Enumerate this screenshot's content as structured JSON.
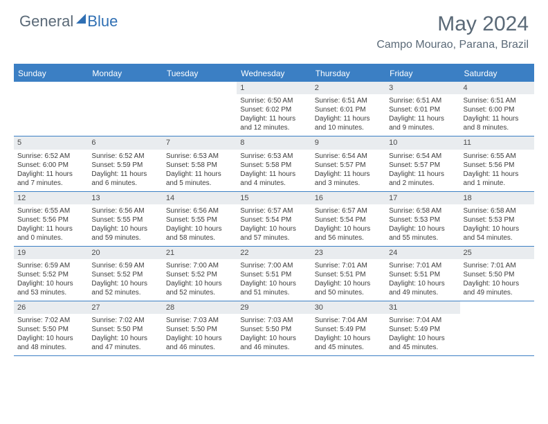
{
  "logo": {
    "part1": "General",
    "part2": "Blue"
  },
  "title": "May 2024",
  "location": "Campo Mourao, Parana, Brazil",
  "colors": {
    "header_bg": "#3b7fc4",
    "header_text": "#ffffff",
    "daynum_bg": "#e9ecef",
    "text": "#3c3c3c",
    "title_color": "#5a6977",
    "accent": "#2f6fb3"
  },
  "day_headers": [
    "Sunday",
    "Monday",
    "Tuesday",
    "Wednesday",
    "Thursday",
    "Friday",
    "Saturday"
  ],
  "weeks": [
    [
      {
        "n": "",
        "sr": "",
        "ss": "",
        "dl": ""
      },
      {
        "n": "",
        "sr": "",
        "ss": "",
        "dl": ""
      },
      {
        "n": "",
        "sr": "",
        "ss": "",
        "dl": ""
      },
      {
        "n": "1",
        "sr": "Sunrise: 6:50 AM",
        "ss": "Sunset: 6:02 PM",
        "dl": "Daylight: 11 hours and 12 minutes."
      },
      {
        "n": "2",
        "sr": "Sunrise: 6:51 AM",
        "ss": "Sunset: 6:01 PM",
        "dl": "Daylight: 11 hours and 10 minutes."
      },
      {
        "n": "3",
        "sr": "Sunrise: 6:51 AM",
        "ss": "Sunset: 6:01 PM",
        "dl": "Daylight: 11 hours and 9 minutes."
      },
      {
        "n": "4",
        "sr": "Sunrise: 6:51 AM",
        "ss": "Sunset: 6:00 PM",
        "dl": "Daylight: 11 hours and 8 minutes."
      }
    ],
    [
      {
        "n": "5",
        "sr": "Sunrise: 6:52 AM",
        "ss": "Sunset: 6:00 PM",
        "dl": "Daylight: 11 hours and 7 minutes."
      },
      {
        "n": "6",
        "sr": "Sunrise: 6:52 AM",
        "ss": "Sunset: 5:59 PM",
        "dl": "Daylight: 11 hours and 6 minutes."
      },
      {
        "n": "7",
        "sr": "Sunrise: 6:53 AM",
        "ss": "Sunset: 5:58 PM",
        "dl": "Daylight: 11 hours and 5 minutes."
      },
      {
        "n": "8",
        "sr": "Sunrise: 6:53 AM",
        "ss": "Sunset: 5:58 PM",
        "dl": "Daylight: 11 hours and 4 minutes."
      },
      {
        "n": "9",
        "sr": "Sunrise: 6:54 AM",
        "ss": "Sunset: 5:57 PM",
        "dl": "Daylight: 11 hours and 3 minutes."
      },
      {
        "n": "10",
        "sr": "Sunrise: 6:54 AM",
        "ss": "Sunset: 5:57 PM",
        "dl": "Daylight: 11 hours and 2 minutes."
      },
      {
        "n": "11",
        "sr": "Sunrise: 6:55 AM",
        "ss": "Sunset: 5:56 PM",
        "dl": "Daylight: 11 hours and 1 minute."
      }
    ],
    [
      {
        "n": "12",
        "sr": "Sunrise: 6:55 AM",
        "ss": "Sunset: 5:56 PM",
        "dl": "Daylight: 11 hours and 0 minutes."
      },
      {
        "n": "13",
        "sr": "Sunrise: 6:56 AM",
        "ss": "Sunset: 5:55 PM",
        "dl": "Daylight: 10 hours and 59 minutes."
      },
      {
        "n": "14",
        "sr": "Sunrise: 6:56 AM",
        "ss": "Sunset: 5:55 PM",
        "dl": "Daylight: 10 hours and 58 minutes."
      },
      {
        "n": "15",
        "sr": "Sunrise: 6:57 AM",
        "ss": "Sunset: 5:54 PM",
        "dl": "Daylight: 10 hours and 57 minutes."
      },
      {
        "n": "16",
        "sr": "Sunrise: 6:57 AM",
        "ss": "Sunset: 5:54 PM",
        "dl": "Daylight: 10 hours and 56 minutes."
      },
      {
        "n": "17",
        "sr": "Sunrise: 6:58 AM",
        "ss": "Sunset: 5:53 PM",
        "dl": "Daylight: 10 hours and 55 minutes."
      },
      {
        "n": "18",
        "sr": "Sunrise: 6:58 AM",
        "ss": "Sunset: 5:53 PM",
        "dl": "Daylight: 10 hours and 54 minutes."
      }
    ],
    [
      {
        "n": "19",
        "sr": "Sunrise: 6:59 AM",
        "ss": "Sunset: 5:52 PM",
        "dl": "Daylight: 10 hours and 53 minutes."
      },
      {
        "n": "20",
        "sr": "Sunrise: 6:59 AM",
        "ss": "Sunset: 5:52 PM",
        "dl": "Daylight: 10 hours and 52 minutes."
      },
      {
        "n": "21",
        "sr": "Sunrise: 7:00 AM",
        "ss": "Sunset: 5:52 PM",
        "dl": "Daylight: 10 hours and 52 minutes."
      },
      {
        "n": "22",
        "sr": "Sunrise: 7:00 AM",
        "ss": "Sunset: 5:51 PM",
        "dl": "Daylight: 10 hours and 51 minutes."
      },
      {
        "n": "23",
        "sr": "Sunrise: 7:01 AM",
        "ss": "Sunset: 5:51 PM",
        "dl": "Daylight: 10 hours and 50 minutes."
      },
      {
        "n": "24",
        "sr": "Sunrise: 7:01 AM",
        "ss": "Sunset: 5:51 PM",
        "dl": "Daylight: 10 hours and 49 minutes."
      },
      {
        "n": "25",
        "sr": "Sunrise: 7:01 AM",
        "ss": "Sunset: 5:50 PM",
        "dl": "Daylight: 10 hours and 49 minutes."
      }
    ],
    [
      {
        "n": "26",
        "sr": "Sunrise: 7:02 AM",
        "ss": "Sunset: 5:50 PM",
        "dl": "Daylight: 10 hours and 48 minutes."
      },
      {
        "n": "27",
        "sr": "Sunrise: 7:02 AM",
        "ss": "Sunset: 5:50 PM",
        "dl": "Daylight: 10 hours and 47 minutes."
      },
      {
        "n": "28",
        "sr": "Sunrise: 7:03 AM",
        "ss": "Sunset: 5:50 PM",
        "dl": "Daylight: 10 hours and 46 minutes."
      },
      {
        "n": "29",
        "sr": "Sunrise: 7:03 AM",
        "ss": "Sunset: 5:50 PM",
        "dl": "Daylight: 10 hours and 46 minutes."
      },
      {
        "n": "30",
        "sr": "Sunrise: 7:04 AM",
        "ss": "Sunset: 5:49 PM",
        "dl": "Daylight: 10 hours and 45 minutes."
      },
      {
        "n": "31",
        "sr": "Sunrise: 7:04 AM",
        "ss": "Sunset: 5:49 PM",
        "dl": "Daylight: 10 hours and 45 minutes."
      },
      {
        "n": "",
        "sr": "",
        "ss": "",
        "dl": ""
      }
    ]
  ]
}
